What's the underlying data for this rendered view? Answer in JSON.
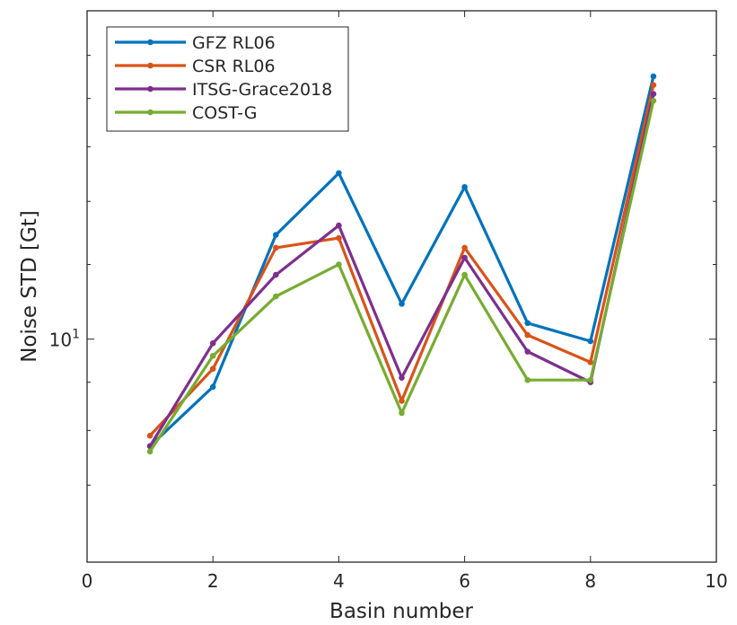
{
  "chart_data": {
    "type": "line",
    "xlabel": "Basin number",
    "ylabel": "Noise STD [Gt]",
    "xlim": [
      0,
      10
    ],
    "ylim": [
      5.8,
      22.3
    ],
    "y_scale": "log",
    "x_ticks": [
      0,
      2,
      4,
      6,
      8,
      10
    ],
    "x_tick_labels": [
      "0",
      "2",
      "4",
      "6",
      "8",
      "10"
    ],
    "y_labeled_ticks": [
      {
        "value": 10,
        "base": "10",
        "exponent": "1"
      }
    ],
    "y_minor_ticks": [
      7,
      8,
      9,
      12,
      14,
      16,
      18,
      20
    ],
    "grid": false,
    "legend_position": "top-left",
    "x": [
      1,
      2,
      3,
      4,
      5,
      6,
      7,
      8,
      9
    ],
    "series": [
      {
        "name": "GFZ RL06",
        "color": "#0072bd",
        "values": [
          7.7,
          8.9,
          12.9,
          15.0,
          10.9,
          14.5,
          10.4,
          9.95,
          19.0
        ]
      },
      {
        "name": "CSR RL06",
        "color": "#d95319",
        "values": [
          7.9,
          9.3,
          12.5,
          12.8,
          8.6,
          12.5,
          10.1,
          9.45,
          18.6
        ]
      },
      {
        "name": "ITSG-Grace2018",
        "color": "#7e2f8e",
        "values": [
          7.7,
          9.9,
          11.7,
          13.2,
          9.1,
          12.2,
          9.7,
          9.0,
          18.2
        ]
      },
      {
        "name": "COST-G",
        "color": "#77ac30",
        "values": [
          7.6,
          9.6,
          11.1,
          12.0,
          8.35,
          11.7,
          9.05,
          9.05,
          17.9
        ]
      }
    ]
  }
}
